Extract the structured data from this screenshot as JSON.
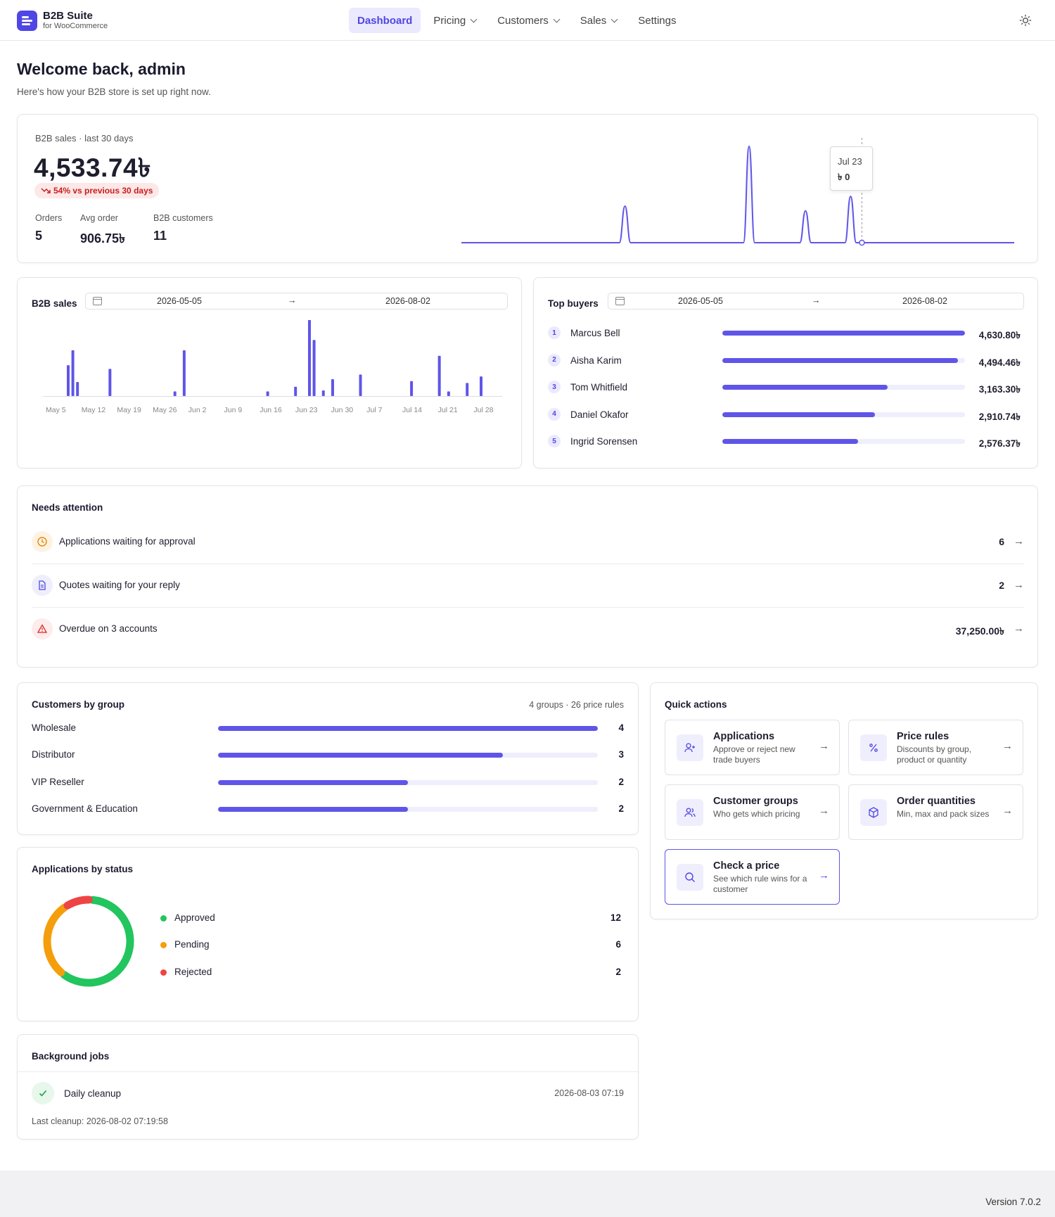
{
  "brand": {
    "name": "B2B Suite",
    "subtitle": "for WooCommerce"
  },
  "nav": [
    {
      "label": "Dashboard",
      "active": true,
      "dropdown": false
    },
    {
      "label": "Pricing",
      "active": false,
      "dropdown": true
    },
    {
      "label": "Customers",
      "active": false,
      "dropdown": true
    },
    {
      "label": "Sales",
      "active": false,
      "dropdown": true
    },
    {
      "label": "Settings",
      "active": false,
      "dropdown": false
    }
  ],
  "header": {
    "theme_icon": "sun-icon"
  },
  "welcome": {
    "title": "Welcome back, admin",
    "subtitle": "Here's how your B2B store is set up right now."
  },
  "kpi": {
    "label": "B2B sales · last 30 days",
    "value": "4,533.74৳",
    "change": "54% vs previous 30 days",
    "change_direction": "down",
    "stats": [
      {
        "label": "Orders",
        "value": "5"
      },
      {
        "label": "Avg order",
        "value": "906.75৳"
      },
      {
        "label": "B2B customers",
        "value": "11"
      }
    ],
    "sparkline": [
      0,
      0,
      0,
      0,
      0,
      0,
      0,
      0,
      0,
      0,
      0,
      0,
      0,
      0,
      0,
      0,
      0,
      0,
      0,
      0,
      0,
      0,
      0,
      0,
      0,
      0,
      0,
      0,
      0,
      0.38,
      0,
      0,
      0,
      0,
      0,
      0,
      0,
      0,
      0,
      0,
      0,
      0,
      0,
      0,
      0,
      0,
      0,
      0,
      0,
      0,
      0,
      1,
      0,
      0,
      0,
      0,
      0,
      0,
      0,
      0,
      0,
      0.33,
      0,
      0,
      0,
      0,
      0,
      0,
      0,
      0.48,
      0,
      0,
      0,
      0,
      0,
      0,
      0,
      0,
      0,
      0,
      0,
      0,
      0,
      0,
      0,
      0,
      0,
      0,
      0,
      0,
      0,
      0,
      0,
      0,
      0,
      0,
      0,
      0,
      0
    ],
    "tooltip": {
      "date": "Jul 23",
      "value": "৳ 0"
    }
  },
  "sales_chart": {
    "title": "B2B sales",
    "range_start": "2026-05-05",
    "range_end": "2026-08-02",
    "arrow": "→"
  },
  "chart_data": {
    "type": "bar",
    "title": "B2B sales",
    "xlabel": "",
    "ylabel": "",
    "x_ticks": [
      "May 5",
      "May 12",
      "May 19",
      "May 26",
      "Jun 2",
      "Jun 9",
      "Jun 16",
      "Jun 23",
      "Jun 30",
      "Jul 7",
      "Jul 14",
      "Jul 21",
      "Jul 28"
    ],
    "grid": false,
    "values": [
      0,
      0,
      0,
      0,
      0,
      0.33,
      0.49,
      0.15,
      0,
      0,
      0,
      0,
      0,
      0,
      0.29,
      0,
      0,
      0,
      0,
      0,
      0,
      0,
      0,
      0,
      0,
      0,
      0,
      0,
      0.05,
      0,
      0.49,
      0,
      0,
      0,
      0,
      0,
      0,
      0,
      0,
      0,
      0,
      0,
      0,
      0,
      0,
      0,
      0,
      0,
      0.05,
      0,
      0,
      0,
      0,
      0,
      0.1,
      0,
      0,
      1.0,
      0.6,
      0,
      0.06,
      0,
      0.18,
      0,
      0,
      0,
      0,
      0,
      0.23,
      0,
      0,
      0,
      0,
      0,
      0,
      0,
      0,
      0,
      0,
      0.16,
      0,
      0,
      0,
      0,
      0,
      0.43,
      0,
      0.05,
      0,
      0,
      0,
      0.14,
      0,
      0,
      0.21,
      0,
      0,
      0,
      0
    ]
  },
  "top_buyers": {
    "title": "Top buyers",
    "range_start": "2026-05-05",
    "range_end": "2026-08-02",
    "arrow": "→",
    "items": [
      {
        "rank": "1",
        "name": "Marcus Bell",
        "value": "4,630.80৳",
        "share": 1.0
      },
      {
        "rank": "2",
        "name": "Aisha Karim",
        "value": "4,494.46৳",
        "share": 0.97
      },
      {
        "rank": "3",
        "name": "Tom Whitfield",
        "value": "3,163.30৳",
        "share": 0.68
      },
      {
        "rank": "4",
        "name": "Daniel Okafor",
        "value": "2,910.74৳",
        "share": 0.63
      },
      {
        "rank": "5",
        "name": "Ingrid Sorensen",
        "value": "2,576.37৳",
        "share": 0.56
      }
    ]
  },
  "attention": {
    "title": "Needs attention",
    "items": [
      {
        "label": "Applications waiting for approval",
        "value": "6",
        "icon": "clock-icon",
        "tone": "#f59e0b",
        "bg": "#fef3e2",
        "arrow": "→"
      },
      {
        "label": "Quotes waiting for your reply",
        "value": "2",
        "icon": "document-icon",
        "tone": "#5046e5",
        "bg": "#efeefd",
        "arrow": "→"
      },
      {
        "label": "Overdue on 3 accounts",
        "value": "37,250.00৳",
        "icon": "warning-icon",
        "tone": "#dc2626",
        "bg": "#fdecec",
        "arrow": "→"
      }
    ]
  },
  "groups": {
    "title": "Customers by group",
    "meta": "4 groups · 26 price rules",
    "items": [
      {
        "name": "Wholesale",
        "value": "4",
        "share": 1.0
      },
      {
        "name": "Distributor",
        "value": "3",
        "share": 0.75
      },
      {
        "name": "VIP Reseller",
        "value": "2",
        "share": 0.5
      },
      {
        "name": "Government & Education",
        "value": "2",
        "share": 0.5
      }
    ]
  },
  "quick_actions": {
    "title": "Quick actions",
    "items": [
      {
        "title": "Applications",
        "desc": "Approve or reject new trade buyers",
        "icon": "user-plus-icon",
        "arrow": "→",
        "selected": false
      },
      {
        "title": "Price rules",
        "desc": "Discounts by group, product or quantity",
        "icon": "percent-icon",
        "arrow": "→",
        "selected": false
      },
      {
        "title": "Customer groups",
        "desc": "Who gets which pricing",
        "icon": "users-icon",
        "arrow": "→",
        "selected": false
      },
      {
        "title": "Order quantities",
        "desc": "Min, max and pack sizes",
        "icon": "box-icon",
        "arrow": "→",
        "selected": false
      },
      {
        "title": "Check a price",
        "desc": "See which rule wins for a customer",
        "icon": "search-icon",
        "arrow": "→",
        "selected": true
      }
    ]
  },
  "applications": {
    "title": "Applications by status",
    "items": [
      {
        "label": "Approved",
        "value": "12",
        "count": 12,
        "color": "#22c55e"
      },
      {
        "label": "Pending",
        "value": "6",
        "count": 6,
        "color": "#f59e0b"
      },
      {
        "label": "Rejected",
        "value": "2",
        "count": 2,
        "color": "#ef4444"
      }
    ]
  },
  "jobs": {
    "title": "Background jobs",
    "job_name": "Daily cleanup",
    "job_time": "2026-08-03 07:19",
    "last": "Last cleanup: 2026-08-02 07:19:58"
  },
  "footer": {
    "version": "Version 7.0.2"
  },
  "colors": {
    "accent": "#5046e5",
    "bar": "#5f55e8"
  }
}
